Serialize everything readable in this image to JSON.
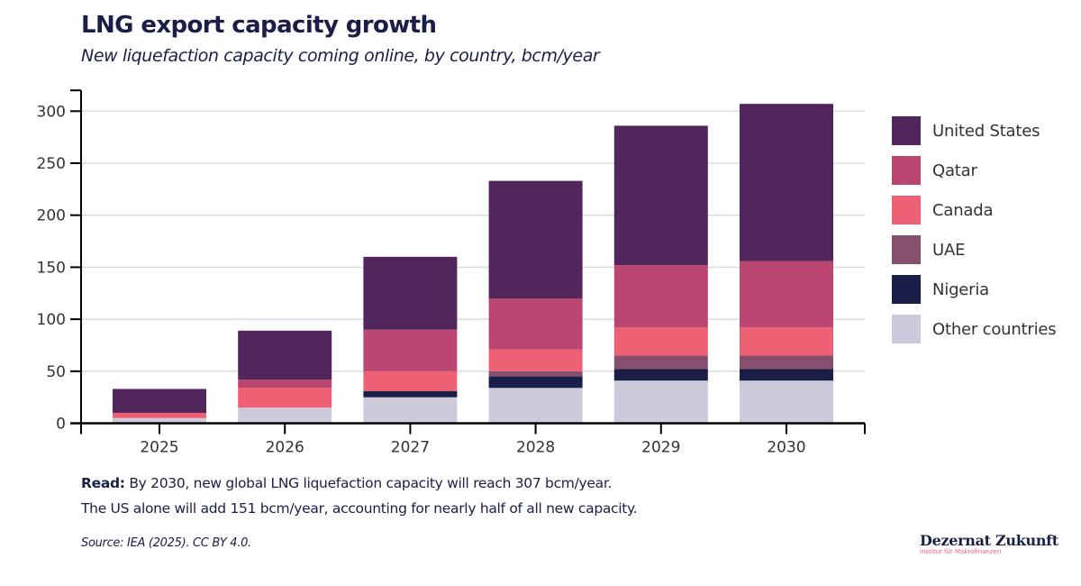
{
  "header": {
    "title": "LNG export capacity growth",
    "subtitle": "New liquefaction capacity coming online, by country, bcm/year"
  },
  "chart_data": {
    "type": "bar",
    "stacked": true,
    "title": "LNG export capacity growth",
    "subtitle": "New liquefaction capacity coming online, by country, bcm/year",
    "xlabel": "",
    "ylabel": "",
    "categories": [
      "2025",
      "2026",
      "2027",
      "2028",
      "2029",
      "2030"
    ],
    "yticks": [
      0,
      50,
      100,
      150,
      200,
      250,
      300
    ],
    "ylim": [
      0,
      320
    ],
    "grid": true,
    "legend_position": "right",
    "series": [
      {
        "name": "Other countries",
        "color": "#CCCADB",
        "values": [
          5,
          15,
          25,
          34,
          41,
          41
        ]
      },
      {
        "name": "Nigeria",
        "color": "#1B1E48",
        "values": [
          0,
          0,
          6,
          11,
          11,
          11
        ]
      },
      {
        "name": "UAE",
        "color": "#86506C",
        "values": [
          0,
          0,
          0,
          5,
          13,
          13
        ]
      },
      {
        "name": "Canada",
        "color": "#EE6174",
        "values": [
          5,
          19,
          19,
          21,
          27,
          27
        ]
      },
      {
        "name": "Qatar",
        "color": "#BC4672",
        "values": [
          0,
          8,
          40,
          49,
          60,
          64
        ]
      },
      {
        "name": "United States",
        "color": "#50265C",
        "values": [
          23,
          47,
          70,
          113,
          134,
          151
        ]
      }
    ]
  },
  "legend": {
    "items": [
      {
        "label": "United States",
        "color": "#50265C"
      },
      {
        "label": "Qatar",
        "color": "#BC4672"
      },
      {
        "label": "Canada",
        "color": "#EE6174"
      },
      {
        "label": "UAE",
        "color": "#86506C"
      },
      {
        "label": "Nigeria",
        "color": "#1B1E48"
      },
      {
        "label": "Other countries",
        "color": "#CCCADB"
      }
    ]
  },
  "footer": {
    "read_label": "Read:",
    "read_line1": " By 2030, new global LNG liquefaction capacity will reach 307 bcm/year.",
    "read_line2": "The US alone will add 151 bcm/year, accounting for nearly half of all new capacity.",
    "source": "Source: IEA (2025). CC BY 4.0.",
    "logo_name": "Dezernat Zukunft",
    "logo_sub": "Institut für Makrofinanzen"
  }
}
